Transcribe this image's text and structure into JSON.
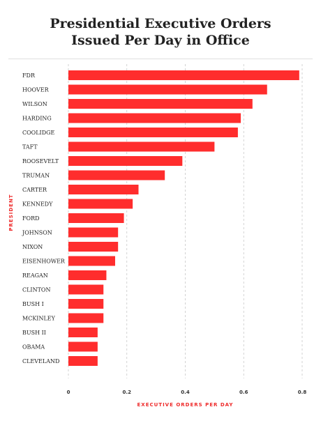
{
  "chart_data": {
    "type": "bar",
    "orientation": "horizontal",
    "title_line1": "Presidential Executive Orders",
    "title_line2": "Issued Per Day in Office",
    "xlabel": "EXECUTIVE ORDERS PER DAY",
    "ylabel": "PRESIDENT",
    "xlim": [
      0,
      0.8
    ],
    "xticks": [
      "0",
      "0.2",
      "0.4",
      "0.6",
      "0.8"
    ],
    "grid": "vertical-dashed",
    "bar_color": "#ff2d2d",
    "categories": [
      "FDR",
      "HOOVER",
      "WILSON",
      "HARDING",
      "COOLIDGE",
      "TAFT",
      "ROOSEVELT",
      "TRUMAN",
      "CARTER",
      "KENNEDY",
      "FORD",
      "JOHNSON",
      "NIXON",
      "EISENHOWER",
      "REAGAN",
      "CLINTON",
      "BUSH I",
      "MCKINLEY",
      "BUSH II",
      "OBAMA",
      "CLEVELAND"
    ],
    "values": [
      0.79,
      0.68,
      0.63,
      0.59,
      0.58,
      0.5,
      0.39,
      0.33,
      0.24,
      0.22,
      0.19,
      0.17,
      0.17,
      0.16,
      0.13,
      0.12,
      0.12,
      0.12,
      0.1,
      0.1,
      0.1
    ]
  }
}
